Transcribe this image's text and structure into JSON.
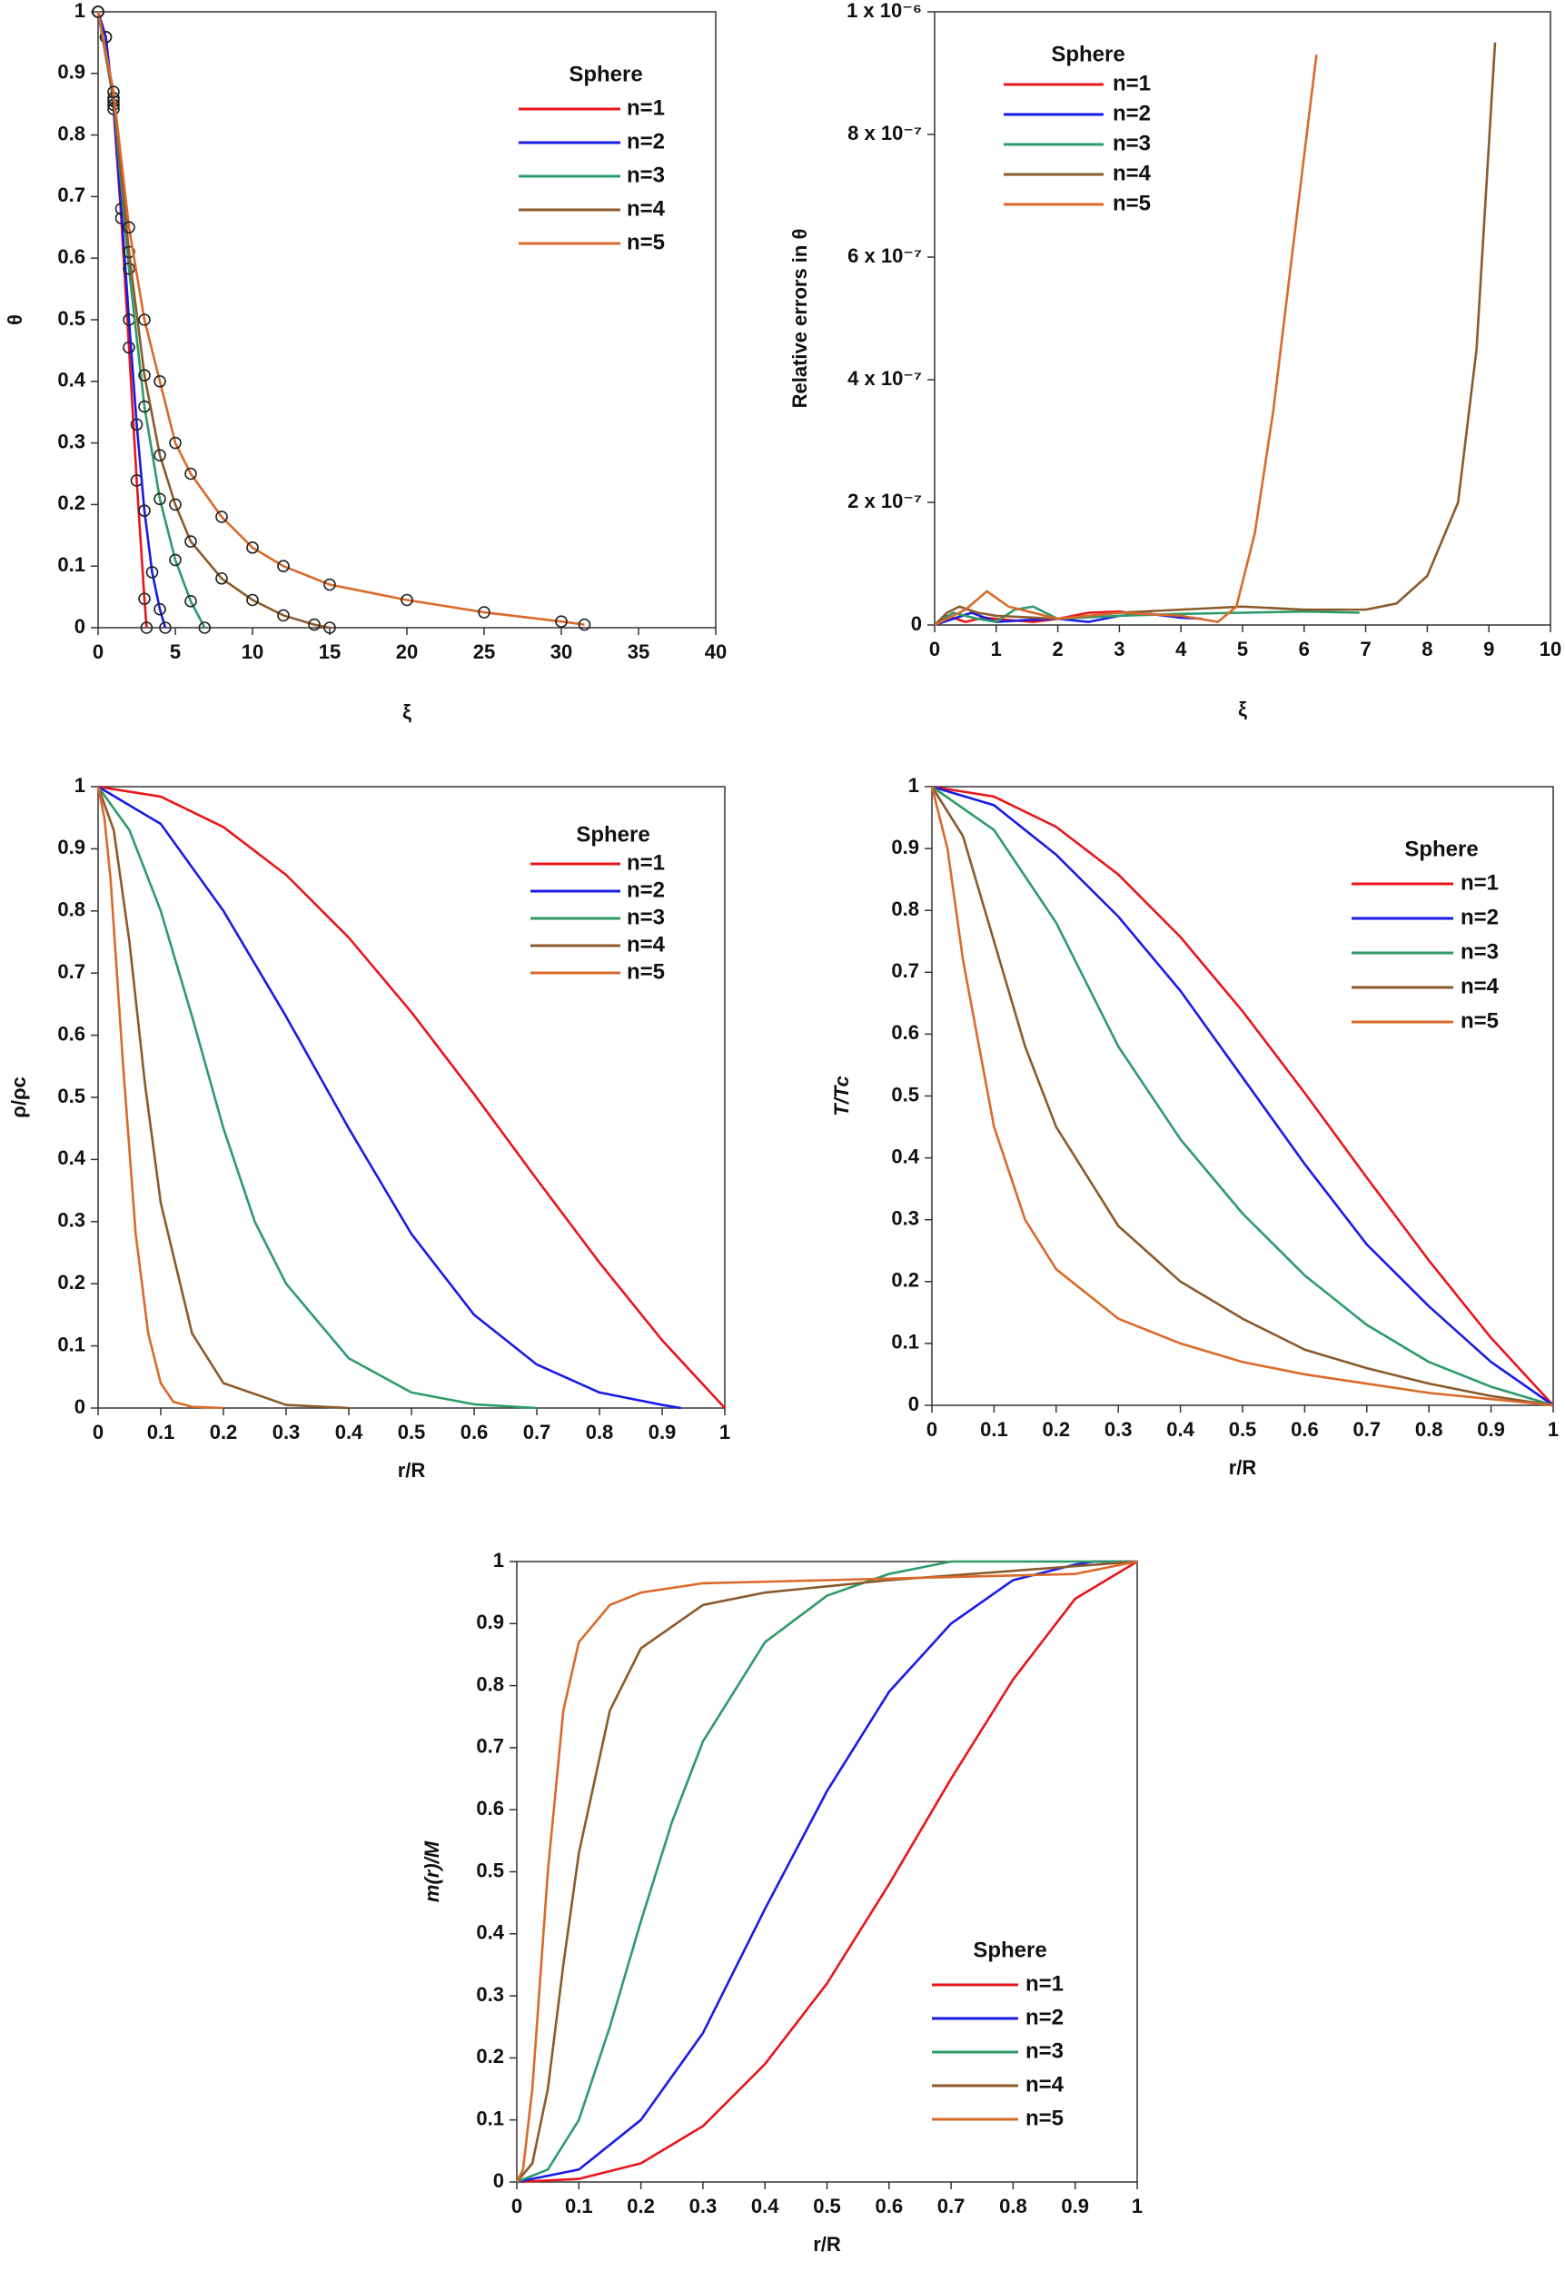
{
  "chart_data": [
    {
      "type": "line",
      "xlabel": "ξ",
      "ylabel": "θ",
      "legend": "upper-right",
      "legend_title": "Sphere",
      "xlim": [
        0,
        40
      ],
      "ylim": [
        0,
        1
      ],
      "xticks": [
        0,
        5,
        10,
        15,
        20,
        25,
        30,
        35,
        40
      ],
      "yticks": [
        0,
        0.1,
        0.2,
        0.3,
        0.4,
        0.5,
        0.6,
        0.7,
        0.8,
        0.9,
        1
      ],
      "markers": true,
      "marker_color": "#222",
      "series": [
        {
          "name": "n=1",
          "color": "#e8151b",
          "x": [
            0,
            0.5,
            1,
            1.5,
            2,
            2.5,
            3,
            3.14
          ],
          "values": [
            1,
            0.959,
            0.842,
            0.665,
            0.455,
            0.239,
            0.047,
            0
          ]
        },
        {
          "name": "n=2",
          "color": "#1a1ae6",
          "x": [
            0,
            0.5,
            1,
            1.5,
            2,
            2.5,
            3,
            3.5,
            4,
            4.35
          ],
          "values": [
            1,
            0.959,
            0.849,
            0.68,
            0.5,
            0.33,
            0.19,
            0.09,
            0.03,
            0
          ]
        },
        {
          "name": "n=3",
          "color": "#2e9a6a",
          "x": [
            0,
            1,
            2,
            3,
            4,
            5,
            6,
            6.9
          ],
          "values": [
            1,
            0.855,
            0.583,
            0.359,
            0.209,
            0.11,
            0.043,
            0
          ]
        },
        {
          "name": "n=4",
          "color": "#8b5a2b",
          "x": [
            0,
            1,
            2,
            3,
            4,
            5,
            6,
            8,
            10,
            12,
            14,
            15
          ],
          "values": [
            1,
            0.86,
            0.61,
            0.41,
            0.28,
            0.2,
            0.14,
            0.08,
            0.045,
            0.02,
            0.005,
            0
          ]
        },
        {
          "name": "n=5",
          "color": "#d96a2b",
          "x": [
            0,
            1,
            2,
            3,
            4,
            5,
            6,
            8,
            10,
            12,
            15,
            20,
            25,
            30,
            31.5
          ],
          "values": [
            1,
            0.87,
            0.65,
            0.5,
            0.4,
            0.3,
            0.25,
            0.18,
            0.13,
            0.1,
            0.07,
            0.045,
            0.025,
            0.01,
            0.005
          ]
        }
      ]
    },
    {
      "type": "line",
      "xlabel": "ξ",
      "ylabel": "Relative errors in θ",
      "legend": "upper-left",
      "legend_title": "Sphere",
      "xlim": [
        0,
        10
      ],
      "ylim": [
        0,
        1e-06
      ],
      "xticks": [
        0,
        1,
        2,
        3,
        4,
        5,
        6,
        7,
        8,
        9,
        10
      ],
      "yticks": [
        0,
        {
          "value": 2e-07,
          "label": "2 x 10⁻⁷"
        },
        {
          "value": 4e-07,
          "label": "4 x 10⁻⁷"
        },
        {
          "value": 6e-07,
          "label": "6 x 10⁻⁷"
        },
        {
          "value": 8e-07,
          "label": "8 x 10⁻⁷"
        },
        {
          "value": 1e-06,
          "label": "1 x 10⁻⁶"
        }
      ],
      "series": [
        {
          "name": "n=1",
          "color": "#e8151b",
          "x": [
            0,
            0.2,
            0.5,
            0.8,
            1.2,
            1.6,
            2,
            2.5,
            3,
            3.14
          ],
          "values": [
            0,
            1.5e-08,
            5e-09,
            1.2e-08,
            8e-09,
            5e-09,
            1e-08,
            2e-08,
            2.2e-08,
            2e-08
          ]
        },
        {
          "name": "n=2",
          "color": "#1a1ae6",
          "x": [
            0,
            0.3,
            0.6,
            1,
            1.5,
            2,
            2.5,
            3,
            3.5,
            4,
            4.35
          ],
          "values": [
            0,
            1e-08,
            2e-08,
            5e-09,
            8e-09,
            1e-08,
            5e-09,
            1.5e-08,
            1.8e-08,
            1.2e-08,
            1e-08
          ]
        },
        {
          "name": "n=3",
          "color": "#2e9a6a",
          "x": [
            0,
            0.3,
            0.7,
            1,
            1.3,
            1.6,
            2,
            3,
            4,
            5,
            6,
            6.9
          ],
          "values": [
            0,
            2e-08,
            1e-08,
            5e-09,
            2.5e-08,
            3e-08,
            1e-08,
            1.5e-08,
            1.8e-08,
            2e-08,
            2.2e-08,
            2e-08
          ]
        },
        {
          "name": "n=4",
          "color": "#8b5a2b",
          "x": [
            0,
            0.2,
            0.4,
            0.7,
            1,
            2,
            3,
            4,
            5,
            6,
            7,
            7.5,
            8,
            8.5,
            8.8,
            9.1
          ],
          "values": [
            0,
            2e-08,
            3e-08,
            2e-08,
            1.5e-08,
            1e-08,
            2e-08,
            2.5e-08,
            3e-08,
            2.5e-08,
            2.5e-08,
            3.5e-08,
            8e-08,
            2e-07,
            4.5e-07,
            9.5e-07
          ]
        },
        {
          "name": "n=5",
          "color": "#d96a2b",
          "x": [
            0,
            0.2,
            0.5,
            0.85,
            1.2,
            2,
            3,
            4,
            4.6,
            4.9,
            5.2,
            5.5,
            5.8,
            6.2
          ],
          "values": [
            0,
            1e-08,
            2.5e-08,
            5.5e-08,
            3e-08,
            1e-08,
            2e-08,
            1.5e-08,
            5e-09,
            3e-08,
            1.5e-07,
            3.5e-07,
            6e-07,
            9.3e-07
          ]
        }
      ]
    },
    {
      "type": "line",
      "xlabel": "r/R",
      "ylabel": "ρ/ρc",
      "legend": "upper-right",
      "legend_title": "Sphere",
      "xlim": [
        0,
        1
      ],
      "ylim": [
        0,
        1
      ],
      "xticks": [
        0,
        0.1,
        0.2,
        0.3,
        0.4,
        0.5,
        0.6,
        0.7,
        0.8,
        0.9,
        1
      ],
      "yticks": [
        0,
        0.1,
        0.2,
        0.3,
        0.4,
        0.5,
        0.6,
        0.7,
        0.8,
        0.9,
        1
      ],
      "series": [
        {
          "name": "n=1",
          "color": "#e8151b",
          "x": [
            0,
            0.1,
            0.2,
            0.3,
            0.4,
            0.5,
            0.6,
            0.7,
            0.8,
            0.9,
            1
          ],
          "values": [
            1,
            0.984,
            0.935,
            0.858,
            0.757,
            0.637,
            0.505,
            0.368,
            0.234,
            0.109,
            0
          ]
        },
        {
          "name": "n=2",
          "color": "#1a1ae6",
          "x": [
            0,
            0.1,
            0.2,
            0.3,
            0.4,
            0.5,
            0.6,
            0.7,
            0.8,
            0.9,
            0.93
          ],
          "values": [
            1,
            0.94,
            0.8,
            0.63,
            0.45,
            0.28,
            0.15,
            0.07,
            0.025,
            0.005,
            0
          ]
        },
        {
          "name": "n=3",
          "color": "#2e9a6a",
          "x": [
            0,
            0.05,
            0.1,
            0.15,
            0.2,
            0.25,
            0.3,
            0.4,
            0.5,
            0.6,
            0.7
          ],
          "values": [
            1,
            0.93,
            0.8,
            0.63,
            0.45,
            0.3,
            0.2,
            0.08,
            0.025,
            0.006,
            0
          ]
        },
        {
          "name": "n=4",
          "color": "#8b5a2b",
          "x": [
            0,
            0.025,
            0.05,
            0.075,
            0.1,
            0.15,
            0.2,
            0.3,
            0.4
          ],
          "values": [
            1,
            0.93,
            0.75,
            0.52,
            0.33,
            0.12,
            0.04,
            0.005,
            0
          ]
        },
        {
          "name": "n=5",
          "color": "#d96a2b",
          "x": [
            0,
            0.01,
            0.02,
            0.04,
            0.06,
            0.08,
            0.1,
            0.12,
            0.15,
            0.2
          ],
          "values": [
            1,
            0.95,
            0.85,
            0.55,
            0.28,
            0.12,
            0.04,
            0.01,
            0.002,
            0
          ]
        }
      ]
    },
    {
      "type": "line",
      "xlabel": "r/R",
      "ylabel": "T/Tc",
      "legend": "upper-right",
      "legend_title": "Sphere",
      "xlim": [
        0,
        1
      ],
      "ylim": [
        0,
        1
      ],
      "xticks": [
        0,
        0.1,
        0.2,
        0.3,
        0.4,
        0.5,
        0.6,
        0.7,
        0.8,
        0.9,
        1
      ],
      "yticks": [
        0,
        0.1,
        0.2,
        0.3,
        0.4,
        0.5,
        0.6,
        0.7,
        0.8,
        0.9,
        1
      ],
      "series": [
        {
          "name": "n=1",
          "color": "#e8151b",
          "x": [
            0,
            0.1,
            0.2,
            0.3,
            0.4,
            0.5,
            0.6,
            0.7,
            0.8,
            0.9,
            1
          ],
          "values": [
            1,
            0.984,
            0.935,
            0.858,
            0.757,
            0.637,
            0.505,
            0.368,
            0.234,
            0.109,
            0
          ]
        },
        {
          "name": "n=2",
          "color": "#1a1ae6",
          "x": [
            0,
            0.1,
            0.2,
            0.3,
            0.4,
            0.5,
            0.6,
            0.7,
            0.8,
            0.9,
            1
          ],
          "values": [
            1,
            0.97,
            0.89,
            0.79,
            0.67,
            0.53,
            0.39,
            0.26,
            0.16,
            0.07,
            0
          ]
        },
        {
          "name": "n=3",
          "color": "#2e9a6a",
          "x": [
            0,
            0.1,
            0.2,
            0.3,
            0.4,
            0.5,
            0.6,
            0.7,
            0.8,
            0.9,
            1
          ],
          "values": [
            1,
            0.93,
            0.78,
            0.58,
            0.43,
            0.31,
            0.21,
            0.13,
            0.07,
            0.03,
            0
          ]
        },
        {
          "name": "n=4",
          "color": "#8b5a2b",
          "x": [
            0,
            0.05,
            0.1,
            0.15,
            0.2,
            0.3,
            0.4,
            0.5,
            0.6,
            0.7,
            0.8,
            0.9,
            1
          ],
          "values": [
            1,
            0.92,
            0.75,
            0.58,
            0.45,
            0.29,
            0.2,
            0.14,
            0.09,
            0.06,
            0.035,
            0.015,
            0
          ]
        },
        {
          "name": "n=5",
          "color": "#d96a2b",
          "x": [
            0,
            0.025,
            0.05,
            0.1,
            0.15,
            0.2,
            0.3,
            0.4,
            0.5,
            0.6,
            0.7,
            0.8,
            0.9,
            1
          ],
          "values": [
            1,
            0.9,
            0.72,
            0.45,
            0.3,
            0.22,
            0.14,
            0.1,
            0.07,
            0.05,
            0.035,
            0.02,
            0.01,
            0
          ]
        }
      ]
    },
    {
      "type": "line",
      "xlabel": "r/R",
      "ylabel": "m(r)/M",
      "legend": "lower-right",
      "legend_title": "Sphere",
      "xlim": [
        0,
        1
      ],
      "ylim": [
        0,
        1
      ],
      "xticks": [
        0,
        0.1,
        0.2,
        0.3,
        0.4,
        0.5,
        0.6,
        0.7,
        0.8,
        0.9,
        1
      ],
      "yticks": [
        0,
        0.1,
        0.2,
        0.3,
        0.4,
        0.5,
        0.6,
        0.7,
        0.8,
        0.9,
        1
      ],
      "series": [
        {
          "name": "n=1",
          "color": "#e8151b",
          "x": [
            0,
            0.1,
            0.2,
            0.3,
            0.4,
            0.5,
            0.6,
            0.7,
            0.8,
            0.9,
            1
          ],
          "values": [
            0,
            0.005,
            0.03,
            0.09,
            0.19,
            0.32,
            0.48,
            0.65,
            0.81,
            0.94,
            1
          ]
        },
        {
          "name": "n=2",
          "color": "#1a1ae6",
          "x": [
            0,
            0.1,
            0.2,
            0.3,
            0.4,
            0.5,
            0.6,
            0.7,
            0.8,
            0.9,
            0.93,
            1
          ],
          "values": [
            0,
            0.02,
            0.1,
            0.24,
            0.44,
            0.63,
            0.79,
            0.9,
            0.97,
            0.995,
            1,
            1
          ]
        },
        {
          "name": "n=3",
          "color": "#2e9a6a",
          "x": [
            0,
            0.05,
            0.1,
            0.15,
            0.2,
            0.25,
            0.3,
            0.4,
            0.5,
            0.6,
            0.7,
            1
          ],
          "values": [
            0,
            0.02,
            0.1,
            0.25,
            0.42,
            0.58,
            0.71,
            0.87,
            0.945,
            0.98,
            1,
            1
          ]
        },
        {
          "name": "n=4",
          "color": "#8b5a2b",
          "x": [
            0,
            0.025,
            0.05,
            0.075,
            0.1,
            0.15,
            0.2,
            0.3,
            0.4,
            0.5,
            0.6,
            0.8,
            1
          ],
          "values": [
            0,
            0.03,
            0.15,
            0.35,
            0.53,
            0.76,
            0.86,
            0.93,
            0.95,
            0.96,
            0.97,
            0.985,
            1
          ]
        },
        {
          "name": "n=5",
          "color": "#d96a2b",
          "x": [
            0,
            0.01,
            0.025,
            0.05,
            0.075,
            0.1,
            0.15,
            0.2,
            0.3,
            0.5,
            0.7,
            0.9,
            1
          ],
          "values": [
            0,
            0.02,
            0.15,
            0.5,
            0.76,
            0.87,
            0.93,
            0.95,
            0.965,
            0.97,
            0.975,
            0.98,
            1
          ]
        }
      ]
    }
  ]
}
